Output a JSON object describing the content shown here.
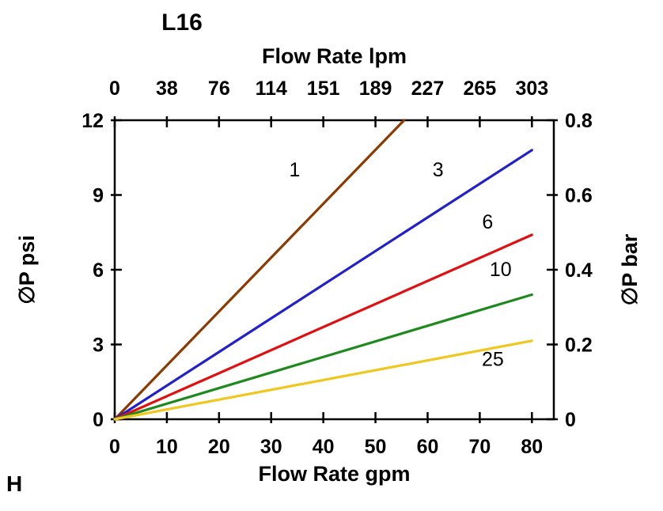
{
  "chart_data": {
    "type": "line",
    "title": "L16",
    "corner_label": "H",
    "top_axis": {
      "label": "Flow Rate lpm",
      "ticks": [
        "0",
        "38",
        "76",
        "114",
        "151",
        "189",
        "227",
        "265",
        "303"
      ]
    },
    "bottom_axis": {
      "label": "Flow Rate gpm",
      "ticks": [
        "0",
        "10",
        "20",
        "30",
        "40",
        "50",
        "60",
        "70",
        "80"
      ]
    },
    "left_axis": {
      "label": "∅P psi",
      "ticks": [
        "0",
        "3",
        "6",
        "9",
        "12"
      ],
      "tick_values": [
        0,
        3,
        6,
        9,
        12
      ],
      "range": [
        0,
        12
      ]
    },
    "right_axis": {
      "label": "∅P bar",
      "ticks": [
        "0",
        "0.2",
        "0.4",
        "0.6",
        "0.8"
      ],
      "range": [
        0,
        0.8
      ]
    },
    "x_tick_values": [
      0,
      10,
      20,
      30,
      40,
      50,
      60,
      70,
      80
    ],
    "x_range": [
      0,
      84.2
    ],
    "grid": false,
    "legend": "inline-labels",
    "series": [
      {
        "name": "1",
        "color": "#8B3A00",
        "points": [
          [
            0,
            0
          ],
          [
            55.5,
            12
          ]
        ],
        "label_pos": [
          34.5,
          9.75
        ]
      },
      {
        "name": "3",
        "color": "#2020CC",
        "points": [
          [
            0,
            0
          ],
          [
            80,
            10.8
          ]
        ],
        "label_pos": [
          62.0,
          9.75
        ]
      },
      {
        "name": "6",
        "color": "#E01010",
        "points": [
          [
            0,
            0
          ],
          [
            80,
            7.4
          ]
        ],
        "label_pos": [
          71.5,
          7.65
        ]
      },
      {
        "name": "10",
        "color": "#1E8A1E",
        "points": [
          [
            0,
            0
          ],
          [
            80,
            5.0
          ]
        ],
        "label_pos": [
          74.0,
          5.75
        ]
      },
      {
        "name": "25",
        "color": "#EFC71E",
        "points": [
          [
            0,
            0
          ],
          [
            80,
            3.15
          ]
        ],
        "label_pos": [
          72.5,
          2.15
        ]
      }
    ]
  }
}
